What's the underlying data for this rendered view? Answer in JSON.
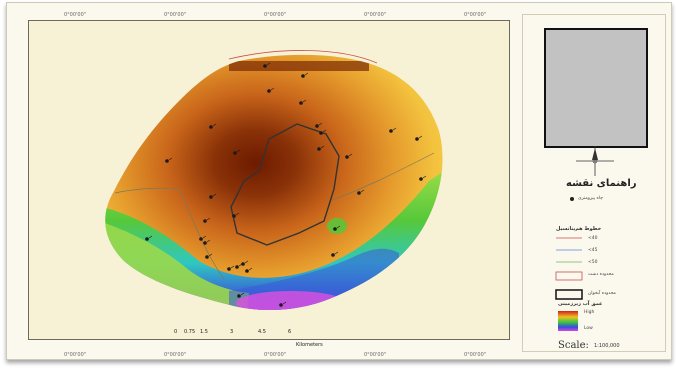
{
  "map": {
    "grid_label": "0°00'00\"",
    "wells": [
      "w1",
      "w2",
      "w3",
      "w4",
      "w5",
      "w6",
      "w7",
      "w8",
      "w9",
      "w10",
      "w11",
      "w12",
      "w13",
      "w14",
      "w15",
      "w16",
      "w17",
      "w18",
      "w19",
      "w20",
      "w21",
      "w22",
      "w23",
      "w24",
      "w25",
      "w26",
      "w27",
      "w28",
      "w29",
      "w30"
    ],
    "scale_bar": {
      "ticks": [
        "0",
        "0.75",
        "1.5",
        "3",
        "4.5",
        "6"
      ],
      "unit": "Kilometers"
    }
  },
  "legend": {
    "title": "راهنمای نقشه",
    "well_label": "چاه پیزومتری",
    "contour_heading": "خطوط هم‌پتانسیل",
    "contour_items": [
      "<40",
      "<45",
      "<50"
    ],
    "boundary_label": "محدوده آبخوان",
    "plain_label": "محدوده دشت",
    "salinity_heading": "عمق آب زیرزمینی",
    "ramp_high": "High",
    "ramp_low": "Low",
    "scale_text": "Scale:",
    "scale_value": "1:100,000"
  },
  "colors": {
    "core": "#6d1a00",
    "mid": "#c8641a",
    "outer": "#f0b030",
    "green": "#56c83a",
    "blue": "#3a5ad8",
    "magenta": "#e050e0"
  }
}
